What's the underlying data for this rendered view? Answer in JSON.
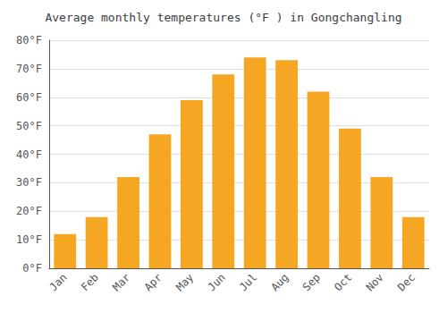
{
  "chart_data": {
    "type": "bar",
    "title": "Average monthly temperatures (°F ) in Gongchangling",
    "categories": [
      "Jan",
      "Feb",
      "Mar",
      "Apr",
      "May",
      "Jun",
      "Jul",
      "Aug",
      "Sep",
      "Oct",
      "Nov",
      "Dec"
    ],
    "values": [
      12,
      18,
      32,
      47,
      59,
      68,
      74,
      73,
      62,
      49,
      32,
      18
    ],
    "color": "#F5A623",
    "ylim": [
      0,
      80
    ],
    "yticks": [
      {
        "value": 0,
        "label": "0°F"
      },
      {
        "value": 10,
        "label": "10°F"
      },
      {
        "value": 20,
        "label": "20°F"
      },
      {
        "value": 30,
        "label": "30°F"
      },
      {
        "value": 40,
        "label": "40°F"
      },
      {
        "value": 50,
        "label": "50°F"
      },
      {
        "value": 60,
        "label": "60°F"
      },
      {
        "value": 70,
        "label": "70°F"
      },
      {
        "value": 80,
        "label": "80°F"
      }
    ],
    "grid": true
  }
}
